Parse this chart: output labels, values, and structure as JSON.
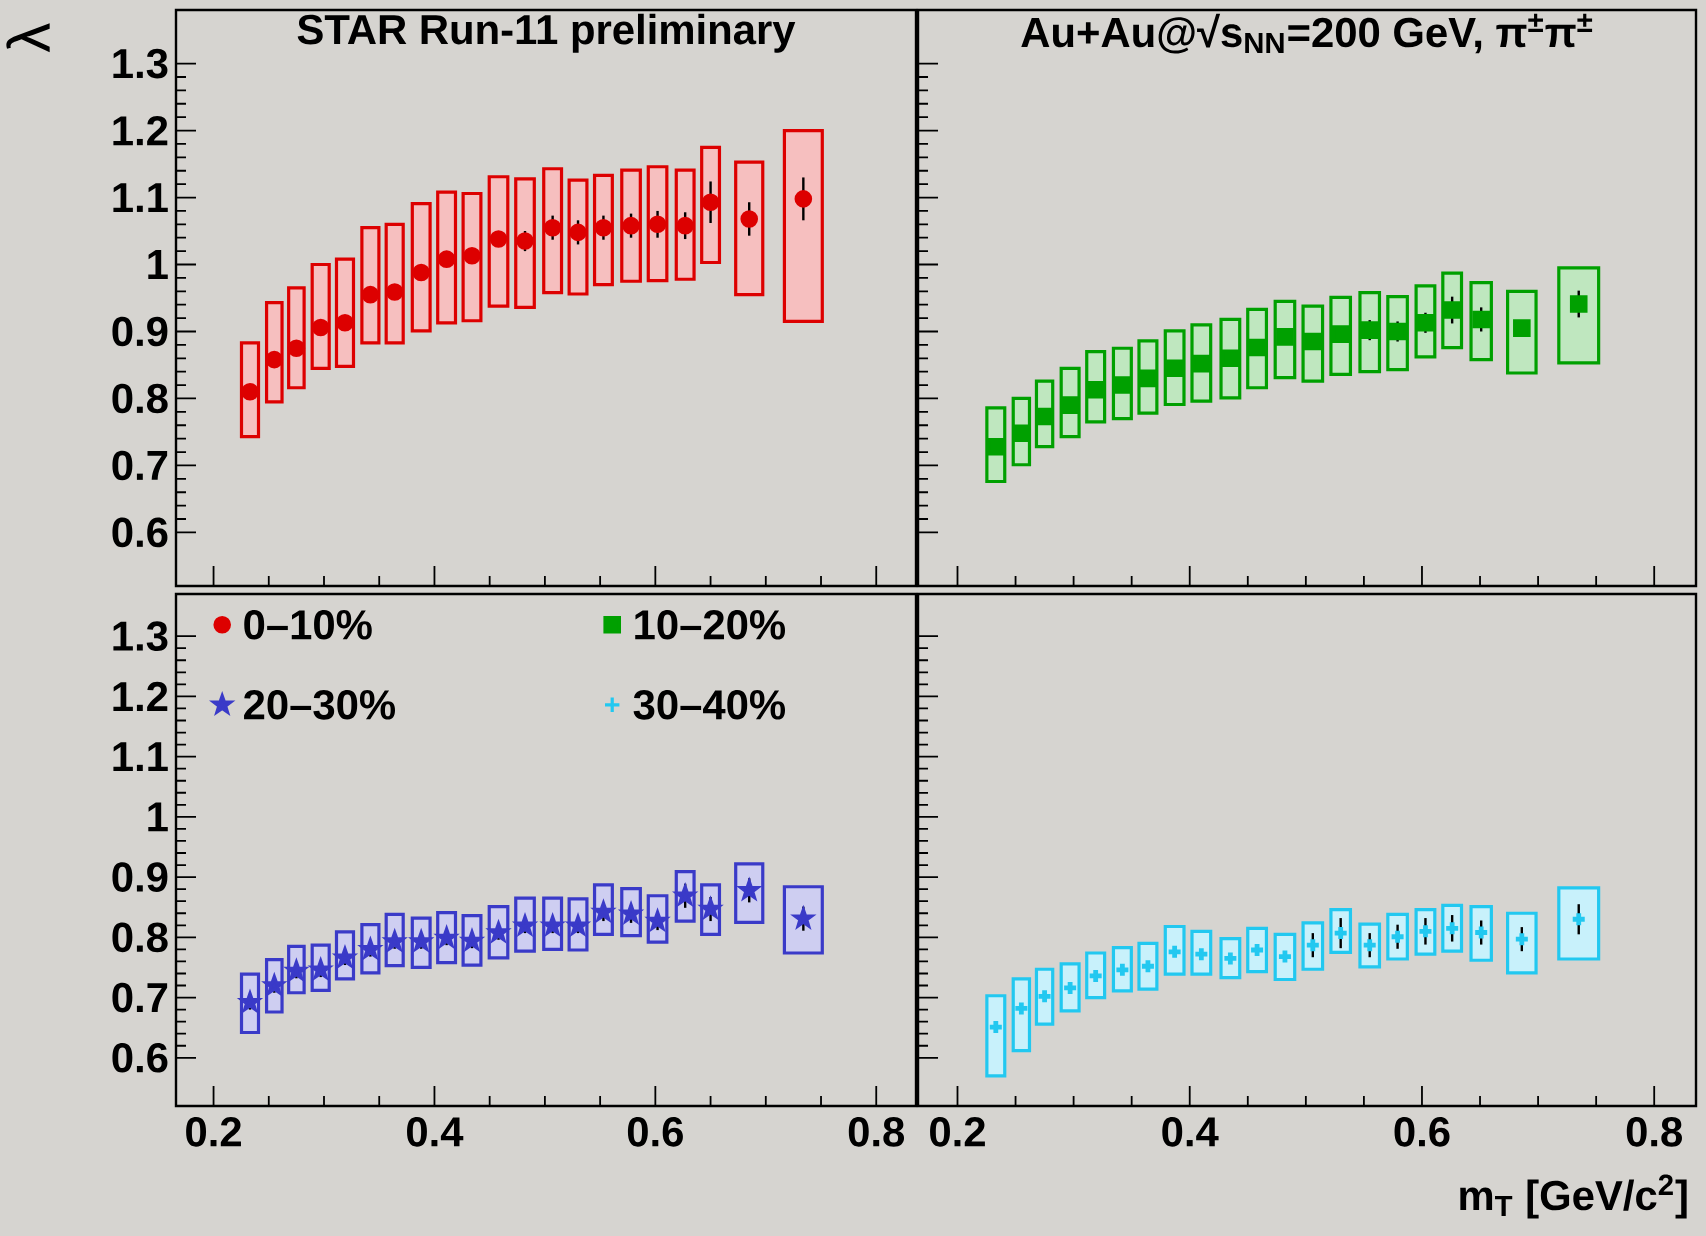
{
  "chart_data": [
    {
      "type": "scatter",
      "title": "STAR Run-11 preliminary",
      "ylabel": "λ",
      "xlim": [
        0.166,
        0.836
      ],
      "xticks": [
        0.2,
        0.4,
        0.6,
        0.8
      ],
      "ylim": [
        0.52,
        1.38
      ],
      "yticks": [
        0.6,
        0.7,
        0.8,
        0.9,
        1,
        1.1,
        1.2,
        1.3
      ],
      "tick_labels": "y",
      "x": [
        0.233,
        0.255,
        0.275,
        0.297,
        0.319,
        0.342,
        0.364,
        0.388,
        0.411,
        0.434,
        0.458,
        0.482,
        0.507,
        0.53,
        0.553,
        0.578,
        0.602,
        0.627,
        0.65,
        0.685,
        0.734
      ],
      "series": [
        {
          "type": "bar",
          "color": "#dd0000",
          "base": [
            0.743,
            0.795,
            0.816,
            0.845,
            0.848,
            0.883,
            0.883,
            0.901,
            0.913,
            0.916,
            0.938,
            0.936,
            0.958,
            0.956,
            0.97,
            0.975,
            0.976,
            0.978,
            1.003,
            0.955,
            0.915
          ],
          "values": [
            0.14,
            0.148,
            0.149,
            0.155,
            0.16,
            0.172,
            0.177,
            0.19,
            0.195,
            0.19,
            0.193,
            0.192,
            0.185,
            0.17,
            0.163,
            0.166,
            0.17,
            0.163,
            0.172,
            0.198,
            0.285
          ]
        },
        {
          "name": "0–10%",
          "color": "#dd0000",
          "marker": "circle",
          "values": [
            0.81,
            0.858,
            0.875,
            0.906,
            0.913,
            0.955,
            0.959,
            0.988,
            1.008,
            1.013,
            1.038,
            1.035,
            1.055,
            1.048,
            1.055,
            1.058,
            1.06,
            1.058,
            1.093,
            1.068,
            1.098
          ],
          "errors": [
            null,
            null,
            null,
            null,
            null,
            null,
            null,
            null,
            null,
            null,
            null,
            0.015,
            0.018,
            0.018,
            0.018,
            0.018,
            0.02,
            0.02,
            0.031,
            0.025,
            0.032
          ]
        }
      ]
    },
    {
      "type": "scatter",
      "title": "Au+Au@√s$_{NN}$=200 GeV, π$^{±}$π$^{±}$",
      "xlim": [
        0.166,
        0.836
      ],
      "xticks": [
        0.2,
        0.4,
        0.6,
        0.8
      ],
      "ylim": [
        0.52,
        1.38
      ],
      "yticks": [
        0.6,
        0.7,
        0.8,
        0.9,
        1,
        1.1,
        1.2,
        1.3
      ],
      "tick_labels": false,
      "x": [
        0.233,
        0.255,
        0.275,
        0.297,
        0.319,
        0.342,
        0.364,
        0.387,
        0.41,
        0.435,
        0.458,
        0.482,
        0.506,
        0.53,
        0.555,
        0.579,
        0.603,
        0.626,
        0.651,
        0.686,
        0.735
      ],
      "series": [
        {
          "type": "bar",
          "color": "#00a000",
          "base": [
            0.676,
            0.701,
            0.728,
            0.743,
            0.765,
            0.77,
            0.778,
            0.791,
            0.796,
            0.801,
            0.816,
            0.831,
            0.826,
            0.836,
            0.84,
            0.843,
            0.862,
            0.876,
            0.858,
            0.838,
            0.853
          ],
          "values": [
            0.11,
            0.099,
            0.098,
            0.102,
            0.105,
            0.105,
            0.108,
            0.11,
            0.114,
            0.117,
            0.117,
            0.114,
            0.112,
            0.115,
            0.118,
            0.109,
            0.106,
            0.111,
            0.115,
            0.122,
            0.142
          ]
        },
        {
          "name": "10–20%",
          "color": "#00a000",
          "marker": "square",
          "values": [
            0.728,
            0.748,
            0.773,
            0.79,
            0.813,
            0.82,
            0.83,
            0.845,
            0.852,
            0.86,
            0.876,
            0.892,
            0.885,
            0.896,
            0.902,
            0.9,
            0.913,
            0.932,
            0.918,
            0.905,
            0.941
          ],
          "errors": [
            null,
            null,
            null,
            null,
            null,
            null,
            null,
            null,
            null,
            null,
            null,
            null,
            null,
            null,
            0.015,
            0.015,
            0.015,
            0.02,
            0.018,
            null,
            0.02
          ]
        }
      ]
    },
    {
      "type": "scatter",
      "xlim": [
        0.166,
        0.836
      ],
      "xticks": [
        0.2,
        0.4,
        0.6,
        0.8
      ],
      "ylim": [
        0.52,
        1.37
      ],
      "yticks": [
        0.6,
        0.7,
        0.8,
        0.9,
        1,
        1.1,
        1.2,
        1.3
      ],
      "legend": "top left",
      "x": [
        0.233,
        0.255,
        0.275,
        0.297,
        0.319,
        0.342,
        0.364,
        0.388,
        0.411,
        0.434,
        0.458,
        0.482,
        0.507,
        0.53,
        0.553,
        0.578,
        0.602,
        0.627,
        0.65,
        0.685,
        0.734
      ],
      "series": [
        {
          "type": "bar",
          "color": "#3a3ac8",
          "base": [
            0.642,
            0.676,
            0.708,
            0.712,
            0.731,
            0.741,
            0.753,
            0.75,
            0.758,
            0.754,
            0.766,
            0.777,
            0.78,
            0.779,
            0.805,
            0.803,
            0.792,
            0.827,
            0.805,
            0.825,
            0.774
          ],
          "values": [
            0.097,
            0.087,
            0.077,
            0.075,
            0.078,
            0.08,
            0.085,
            0.082,
            0.083,
            0.082,
            0.085,
            0.088,
            0.085,
            0.085,
            0.082,
            0.078,
            0.077,
            0.082,
            0.082,
            0.097,
            0.11
          ]
        },
        {
          "name": "20–30%",
          "color": "#3a3ac8",
          "marker": "star",
          "values": [
            0.692,
            0.72,
            0.744,
            0.746,
            0.766,
            0.78,
            0.793,
            0.793,
            0.799,
            0.794,
            0.808,
            0.819,
            0.819,
            0.819,
            0.842,
            0.839,
            0.827,
            0.869,
            0.847,
            0.878,
            0.831
          ],
          "errors": [
            0.012,
            0.012,
            0.012,
            0.012,
            0.012,
            0.012,
            0.012,
            0.012,
            0.012,
            0.012,
            0.012,
            0.012,
            0.012,
            0.012,
            0.015,
            0.015,
            0.015,
            0.02,
            0.02,
            0.02,
            0.02
          ]
        }
      ]
    },
    {
      "type": "scatter",
      "xlabel": "m$_{T}$ [GeV/c$^{2}$]",
      "xlim": [
        0.166,
        0.836
      ],
      "xticks": [
        0.2,
        0.4,
        0.6,
        0.8
      ],
      "ylim": [
        0.52,
        1.37
      ],
      "yticks": [
        0.6,
        0.7,
        0.8,
        0.9,
        1,
        1.1,
        1.2,
        1.3
      ],
      "tick_labels": "x",
      "x": [
        0.233,
        0.255,
        0.275,
        0.297,
        0.319,
        0.342,
        0.364,
        0.387,
        0.41,
        0.435,
        0.458,
        0.482,
        0.506,
        0.53,
        0.555,
        0.579,
        0.603,
        0.626,
        0.651,
        0.686,
        0.735
      ],
      "series": [
        {
          "type": "bar",
          "color": "#22c8f0",
          "base": [
            0.57,
            0.612,
            0.656,
            0.678,
            0.7,
            0.711,
            0.714,
            0.739,
            0.739,
            0.733,
            0.743,
            0.73,
            0.747,
            0.775,
            0.751,
            0.764,
            0.772,
            0.777,
            0.762,
            0.741,
            0.764
          ],
          "values": [
            0.133,
            0.119,
            0.091,
            0.078,
            0.074,
            0.072,
            0.076,
            0.079,
            0.071,
            0.065,
            0.072,
            0.075,
            0.077,
            0.071,
            0.071,
            0.074,
            0.074,
            0.076,
            0.089,
            0.099,
            0.118
          ]
        },
        {
          "name": "30–40%",
          "color": "#22c8f0",
          "marker": "cross",
          "values": [
            0.651,
            0.682,
            0.702,
            0.716,
            0.736,
            0.746,
            0.752,
            0.776,
            0.772,
            0.765,
            0.779,
            0.768,
            0.787,
            0.807,
            0.787,
            0.801,
            0.81,
            0.815,
            0.808,
            0.797,
            0.83
          ],
          "errors": [
            null,
            null,
            null,
            null,
            null,
            null,
            null,
            null,
            null,
            null,
            null,
            null,
            0.02,
            0.025,
            0.02,
            0.02,
            0.022,
            0.022,
            0.02,
            0.02,
            0.025
          ]
        }
      ]
    }
  ]
}
